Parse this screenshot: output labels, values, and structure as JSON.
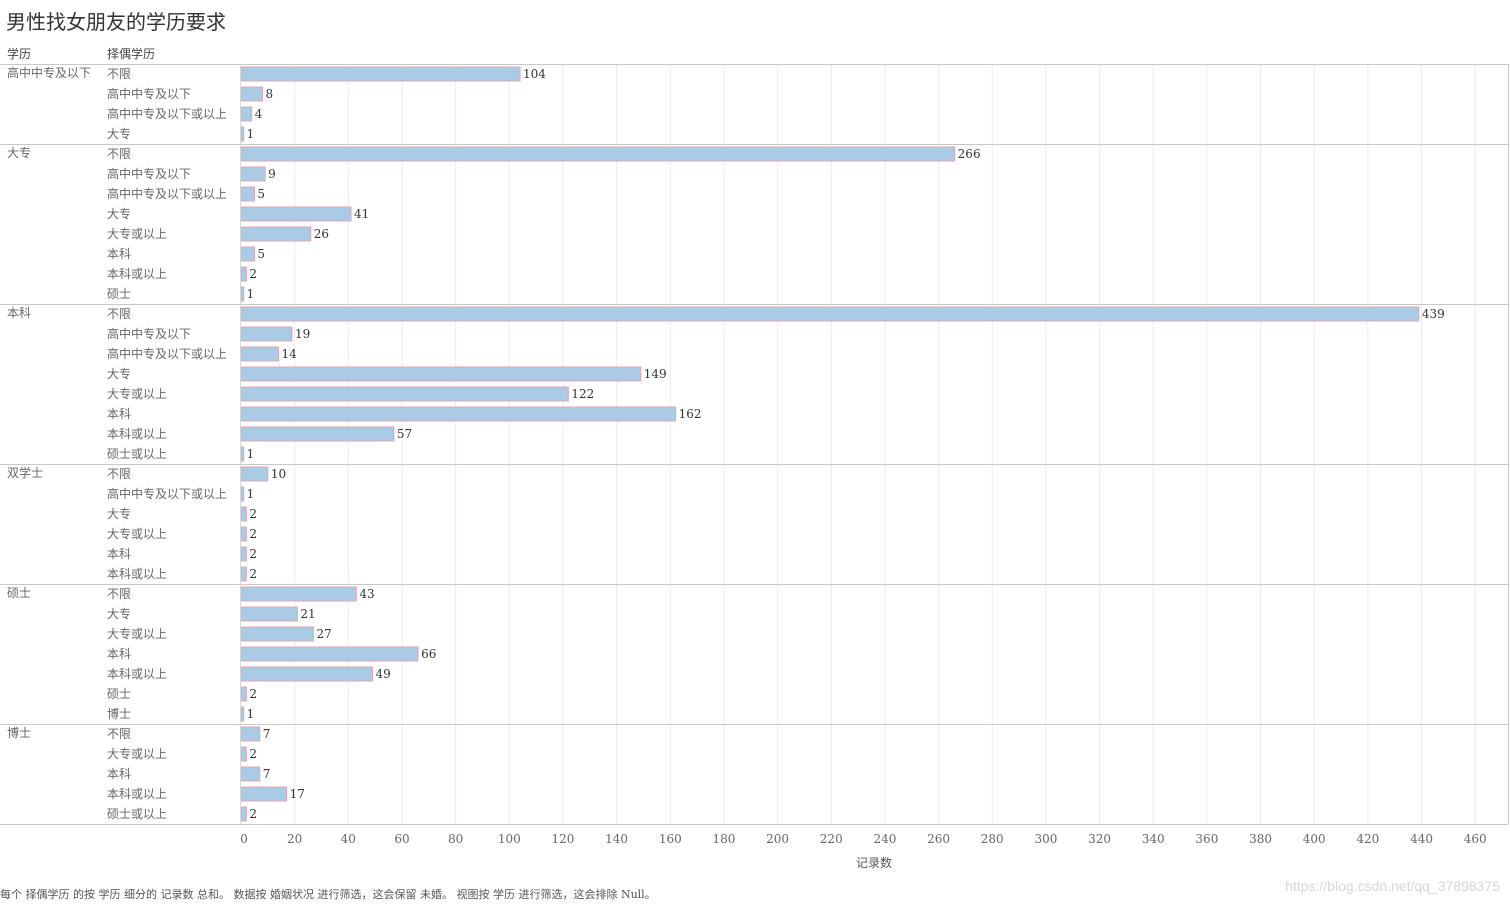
{
  "title": "男性找女朋友的学历要求",
  "headers": {
    "row_group": "学历",
    "row_sub": "择偶学历"
  },
  "footer_note": "每个 择偶学历 的按 学历 细分的 记录数 总和。 数据按 婚姻状况 进行筛选，这会保留 未婚。 视图按 学历 进行筛选，这会排除 Null。",
  "watermark": "https://blog.csdn.net/qq_37898375",
  "colors": {
    "bar_fill": "#a9cbe6",
    "bar_stroke": "#e8a3b4",
    "grid": "#ececec",
    "divider": "#c8c8c8"
  },
  "chart_data": {
    "type": "bar",
    "orientation": "horizontal",
    "title": "男性找女朋友的学历要求",
    "xlabel": "记录数",
    "xlim": [
      0,
      460
    ],
    "xticks": [
      0,
      20,
      40,
      60,
      80,
      100,
      120,
      140,
      160,
      180,
      200,
      220,
      240,
      260,
      280,
      300,
      320,
      340,
      360,
      380,
      400,
      420,
      440,
      460
    ],
    "groups": [
      {
        "name": "高中中专及以下",
        "rows": [
          {
            "label": "不限",
            "value": 104
          },
          {
            "label": "高中中专及以下",
            "value": 8
          },
          {
            "label": "高中中专及以下或以上",
            "value": 4
          },
          {
            "label": "大专",
            "value": 1
          }
        ]
      },
      {
        "name": "大专",
        "rows": [
          {
            "label": "不限",
            "value": 266
          },
          {
            "label": "高中中专及以下",
            "value": 9
          },
          {
            "label": "高中中专及以下或以上",
            "value": 5
          },
          {
            "label": "大专",
            "value": 41
          },
          {
            "label": "大专或以上",
            "value": 26
          },
          {
            "label": "本科",
            "value": 5
          },
          {
            "label": "本科或以上",
            "value": 2
          },
          {
            "label": "硕士",
            "value": 1
          }
        ]
      },
      {
        "name": "本科",
        "rows": [
          {
            "label": "不限",
            "value": 439
          },
          {
            "label": "高中中专及以下",
            "value": 19
          },
          {
            "label": "高中中专及以下或以上",
            "value": 14
          },
          {
            "label": "大专",
            "value": 149
          },
          {
            "label": "大专或以上",
            "value": 122
          },
          {
            "label": "本科",
            "value": 162
          },
          {
            "label": "本科或以上",
            "value": 57
          },
          {
            "label": "硕士或以上",
            "value": 1
          }
        ]
      },
      {
        "name": "双学士",
        "rows": [
          {
            "label": "不限",
            "value": 10
          },
          {
            "label": "高中中专及以下或以上",
            "value": 1
          },
          {
            "label": "大专",
            "value": 2
          },
          {
            "label": "大专或以上",
            "value": 2
          },
          {
            "label": "本科",
            "value": 2
          },
          {
            "label": "本科或以上",
            "value": 2
          }
        ]
      },
      {
        "name": "硕士",
        "rows": [
          {
            "label": "不限",
            "value": 43
          },
          {
            "label": "大专",
            "value": 21
          },
          {
            "label": "大专或以上",
            "value": 27
          },
          {
            "label": "本科",
            "value": 66
          },
          {
            "label": "本科或以上",
            "value": 49
          },
          {
            "label": "硕士",
            "value": 2
          },
          {
            "label": "博士",
            "value": 1
          }
        ]
      },
      {
        "name": "博士",
        "rows": [
          {
            "label": "不限",
            "value": 7
          },
          {
            "label": "大专或以上",
            "value": 2
          },
          {
            "label": "本科",
            "value": 7
          },
          {
            "label": "本科或以上",
            "value": 17
          },
          {
            "label": "硕士或以上",
            "value": 2
          }
        ]
      }
    ]
  }
}
